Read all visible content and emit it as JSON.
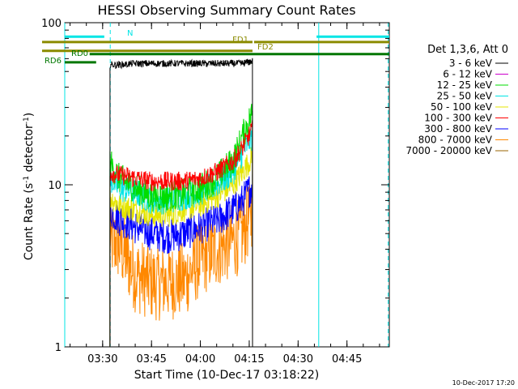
{
  "chart_data": {
    "type": "line",
    "title": "HESSI Observing Summary Count Rates",
    "xlabel": "Start Time (10-Dec-17 03:18:22)",
    "ylabel_parts": [
      "Count Rate (s",
      "-1",
      " detector",
      "-1",
      ")"
    ],
    "yscale": "log",
    "ylim": [
      1,
      100
    ],
    "xlim": [
      "03:18:22",
      "04:58:00"
    ],
    "x_ticks": [
      "03:30",
      "03:45",
      "04:00",
      "04:15",
      "04:30",
      "04:45"
    ],
    "y_ticks": [
      "1",
      "10",
      "100"
    ],
    "data_start": "03:32:15",
    "data_end": "04:16:00",
    "x": [
      "03:32",
      "03:35",
      "03:40",
      "03:45",
      "03:50",
      "03:55",
      "04:00",
      "04:05",
      "04:10",
      "04:13",
      "04:16"
    ],
    "series": [
      {
        "name": "3 - 6 keV",
        "color": "#000000",
        "values": [
          55,
          55,
          56,
          56,
          56,
          56,
          56,
          56,
          56,
          56,
          58
        ]
      },
      {
        "name": "6 - 12 keV",
        "color": "#cc00cc",
        "values": [
          null,
          null,
          null,
          null,
          null,
          null,
          null,
          null,
          null,
          null,
          null
        ]
      },
      {
        "name": "12 - 25 keV",
        "color": "#00dd00",
        "values": [
          14,
          11,
          9.5,
          8.5,
          8.5,
          8.8,
          9.5,
          11,
          14,
          20,
          28
        ]
      },
      {
        "name": "25 - 50 keV",
        "color": "#00e5e5",
        "values": [
          11,
          9.5,
          9,
          8,
          8,
          8.5,
          9,
          10,
          12,
          16,
          20
        ]
      },
      {
        "name": "50 - 100 keV",
        "color": "#e5e500",
        "values": [
          8.5,
          7.5,
          7,
          6.5,
          6.5,
          7,
          7.5,
          8.5,
          10,
          12,
          15
        ]
      },
      {
        "name": "100 - 300 keV",
        "color": "#ff0000",
        "values": [
          12,
          11.5,
          11,
          10.5,
          10.5,
          10.5,
          11,
          12,
          14,
          17,
          22
        ]
      },
      {
        "name": "300 - 800 keV",
        "color": "#0000ff",
        "values": [
          7,
          6.2,
          5.5,
          5,
          4.8,
          5,
          5.5,
          6,
          7,
          8,
          10
        ]
      },
      {
        "name": "800 - 7000 keV",
        "color": "#ff8800",
        "values": [
          4.5,
          4.3,
          2.8,
          2.5,
          2.5,
          2.6,
          3.5,
          4,
          4.5,
          5,
          7
        ]
      },
      {
        "name": "7000 - 20000 keV",
        "color": "#996600",
        "values": [
          null,
          null,
          null,
          null,
          null,
          null,
          null,
          null,
          null,
          null,
          null
        ]
      }
    ],
    "legend_header": "Det 1,3,6, Att 0",
    "legend_position": "right",
    "status_bars": [
      {
        "label": "N",
        "color": "#00e5e5",
        "level": 82,
        "segments": [
          [
            "03:18:22",
            "03:30:30"
          ],
          [
            "04:35:40",
            "04:58:00"
          ]
        ]
      },
      {
        "label": "FD1",
        "color": "#8b8b00",
        "level": 76,
        "segments": [
          [
            "03:18:22",
            "04:16:00"
          ],
          [
            "04:16:30",
            "04:58:00"
          ]
        ]
      },
      {
        "label": "FD2",
        "color": "#8b8b00",
        "level": 67,
        "segments": [
          [
            "03:18:22",
            "04:16:00"
          ]
        ]
      },
      {
        "label": "RD0",
        "color": "#007700",
        "level": 64,
        "segments": [
          [
            "03:26:00",
            "04:58:00"
          ]
        ]
      },
      {
        "label": "RD6",
        "color": "#007700",
        "level": 57,
        "segments": [
          [
            "03:18:22",
            "03:28:00"
          ],
          [
            "04:15:00",
            "04:16:00"
          ]
        ]
      }
    ],
    "night_lines": [
      {
        "time": "03:18:22",
        "style": "solid"
      },
      {
        "time": "03:32:20",
        "style": "dashed"
      },
      {
        "time": "04:36:20",
        "style": "solid"
      },
      {
        "time": "04:57:40",
        "style": "dashed"
      }
    ]
  },
  "footer": {
    "date_stamp": "10-Dec-2017 17:20"
  }
}
